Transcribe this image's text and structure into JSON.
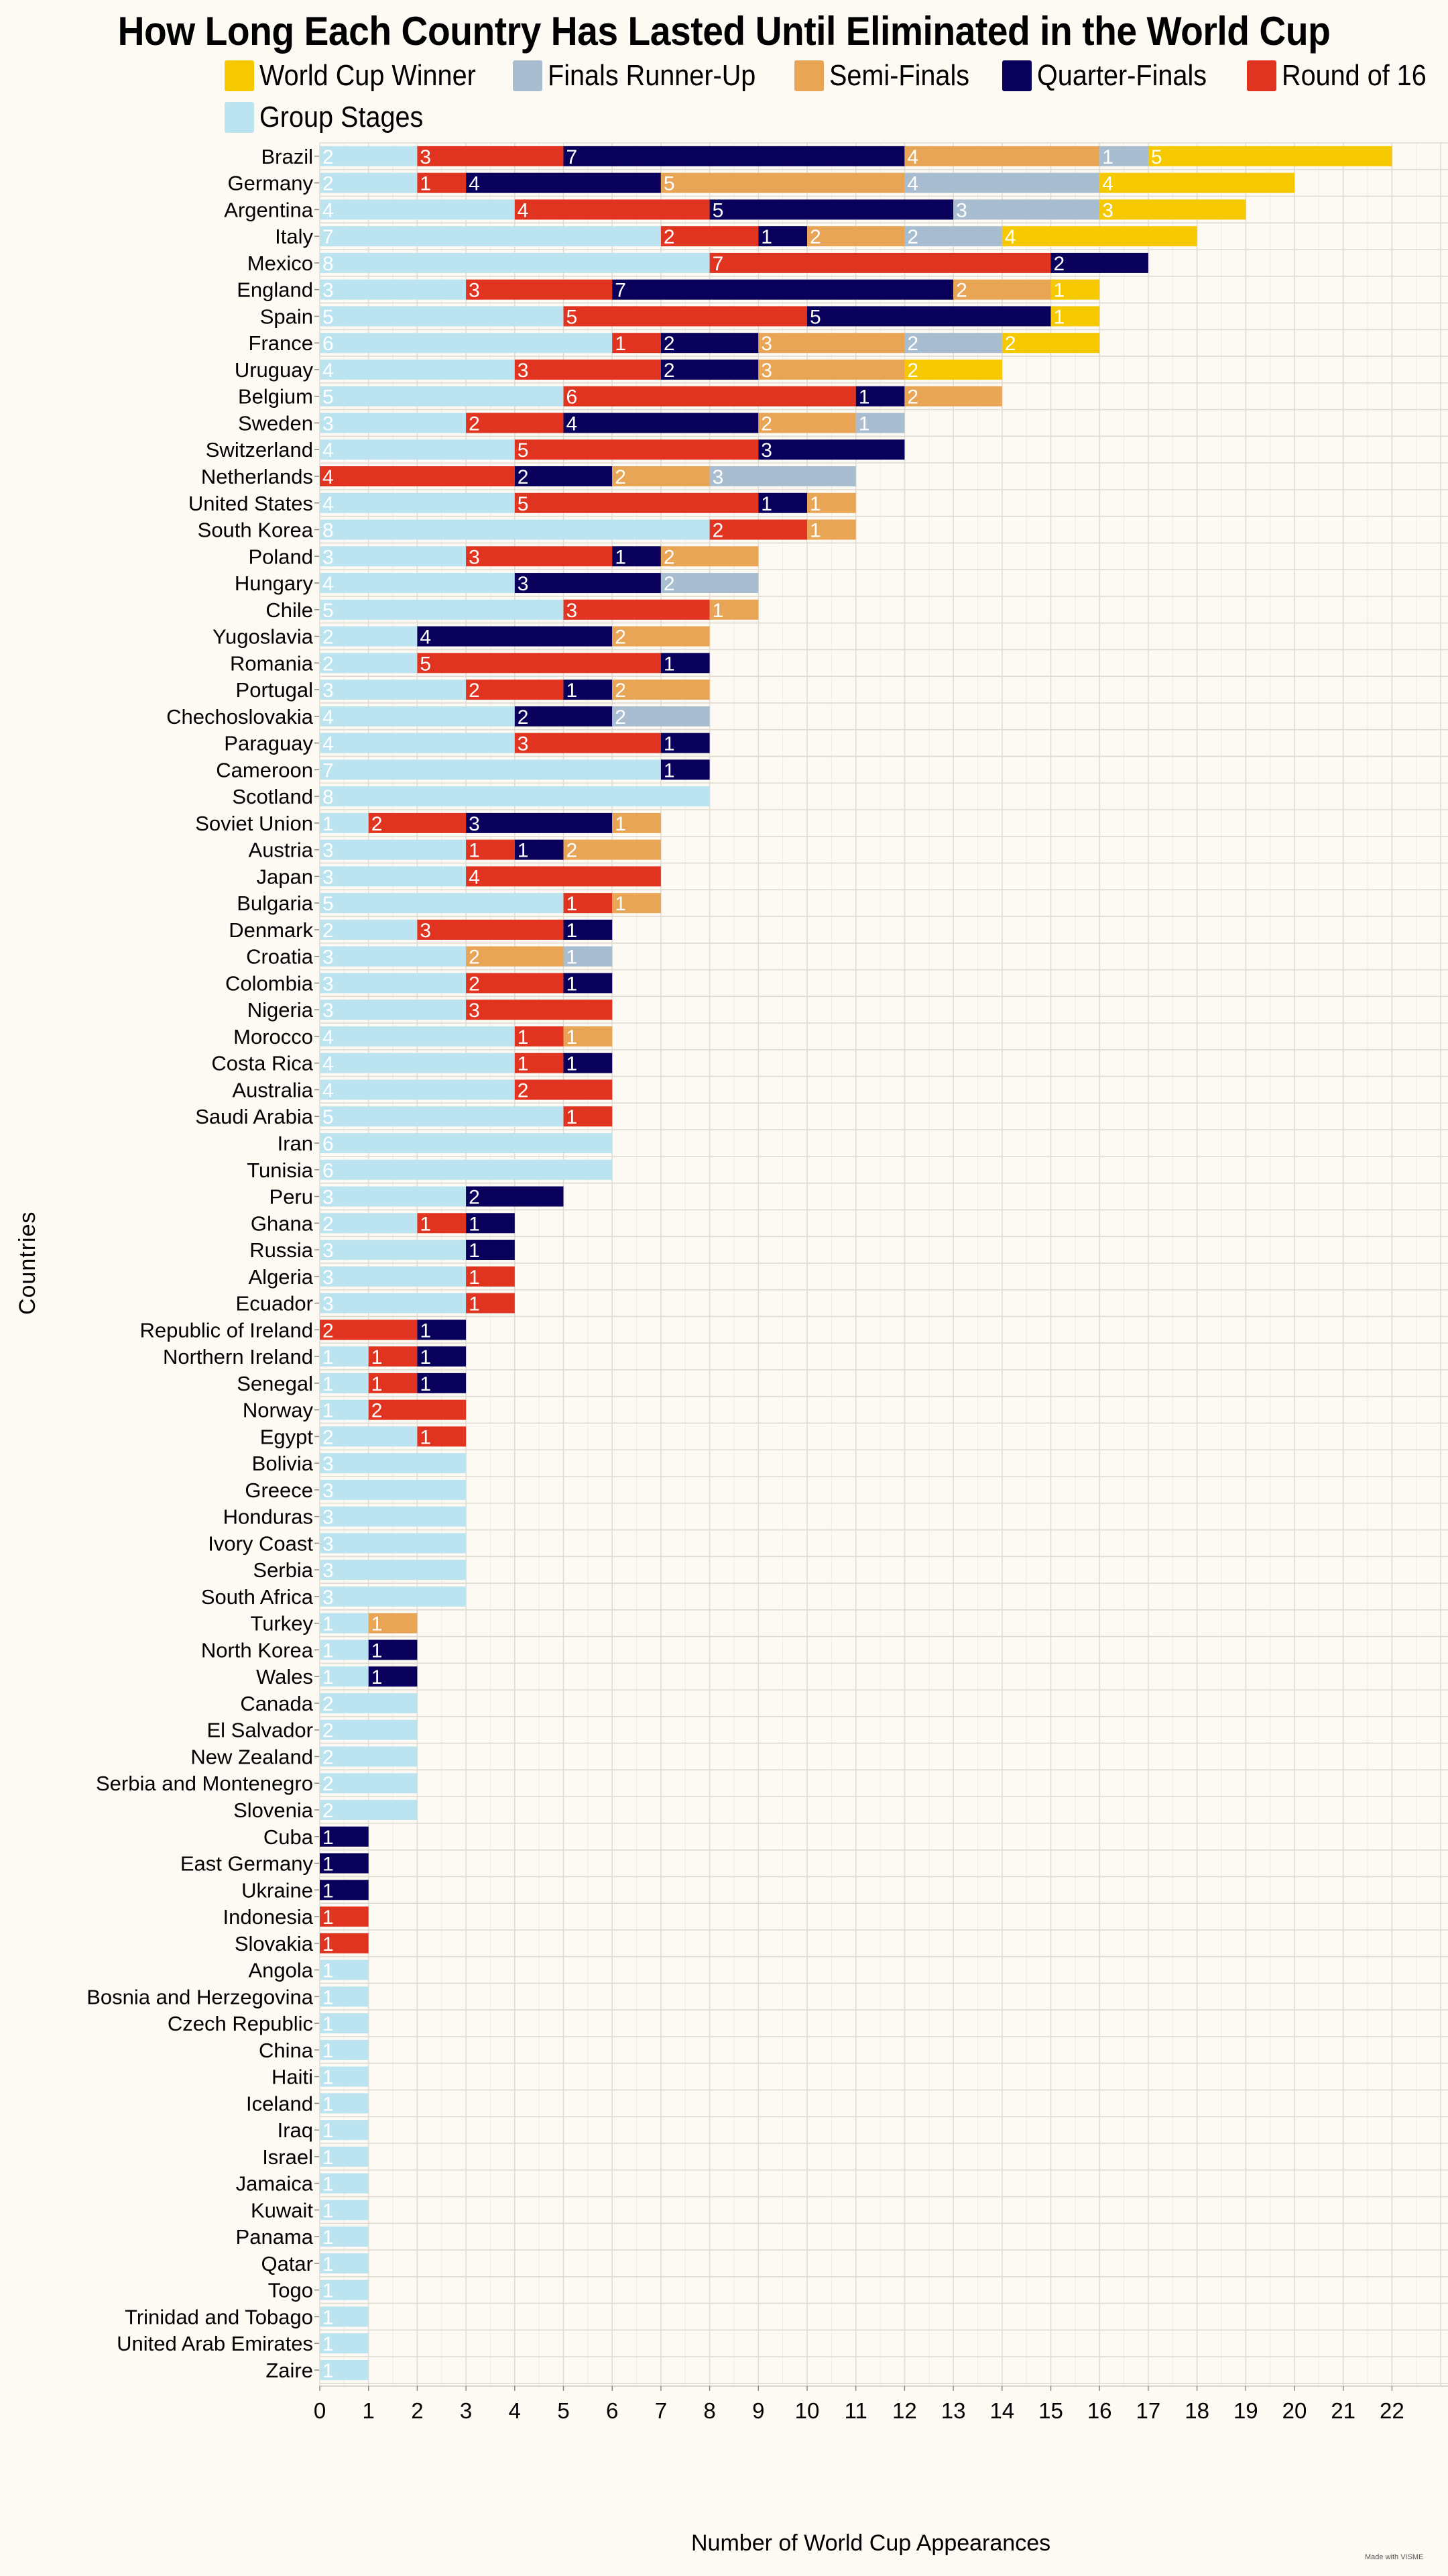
{
  "chart_data": {
    "type": "bar",
    "orientation": "horizontal",
    "stacked": true,
    "title": "How Long Each Country Has Lasted Until Eliminated in the World Cup",
    "xlabel": "Number of World Cup Appearances",
    "ylabel": "Countries",
    "xlim": [
      0,
      23
    ],
    "xticks": [
      0,
      1,
      2,
      3,
      4,
      5,
      6,
      7,
      8,
      9,
      10,
      11,
      12,
      13,
      14,
      15,
      16,
      17,
      18,
      19,
      20,
      21,
      22
    ],
    "grid": true,
    "legend_position": "top",
    "series": [
      {
        "key": "group",
        "name": "Group Stages",
        "color": "#bce4f0",
        "label_color": "#ffffff"
      },
      {
        "key": "r16",
        "name": "Round of 16",
        "color": "#e03421",
        "label_color": "#ffffff"
      },
      {
        "key": "qf",
        "name": "Quarter-Finals",
        "color": "#08005a",
        "label_color": "#ffffff"
      },
      {
        "key": "sf",
        "name": "Semi-Finals",
        "color": "#e9a556",
        "label_color": "#ffffff"
      },
      {
        "key": "ru",
        "name": "Finals Runner-Up",
        "color": "#a8bed0",
        "label_color": "#ffffff"
      },
      {
        "key": "win",
        "name": "World Cup Winner",
        "color": "#f5c800",
        "label_color": "#ffffff"
      }
    ],
    "legend_order": [
      "win",
      "ru",
      "sf",
      "qf",
      "r16",
      "group"
    ],
    "categories": [
      "Brazil",
      "Germany",
      "Argentina",
      "Italy",
      "Mexico",
      "England",
      "Spain",
      "France",
      "Uruguay",
      "Belgium",
      "Sweden",
      "Switzerland",
      "Netherlands",
      "United States",
      "South Korea",
      "Poland",
      "Hungary",
      "Chile",
      "Yugoslavia",
      "Romania",
      "Portugal",
      "Chechoslovakia",
      "Paraguay",
      "Cameroon",
      "Scotland",
      "Soviet Union",
      "Austria",
      "Japan",
      "Bulgaria",
      "Denmark",
      "Croatia",
      "Colombia",
      "Nigeria",
      "Morocco",
      "Costa Rica",
      "Australia",
      "Saudi Arabia",
      "Iran",
      "Tunisia",
      "Peru",
      "Ghana",
      "Russia",
      "Algeria",
      "Ecuador",
      "Republic of Ireland",
      "Northern Ireland",
      "Senegal",
      "Norway",
      "Egypt",
      "Bolivia",
      "Greece",
      "Honduras",
      "Ivory Coast",
      "Serbia",
      "South Africa",
      "Turkey",
      "North Korea",
      "Wales",
      "Canada",
      "El Salvador",
      "New Zealand",
      "Serbia and Montenegro",
      "Slovenia",
      "Cuba",
      "East Germany",
      "Ukraine",
      "Indonesia",
      "Slovakia",
      "Angola",
      "Bosnia and Herzegovina",
      "Czech Republic",
      "China",
      "Haiti",
      "Iceland",
      "Iraq",
      "Israel",
      "Jamaica",
      "Kuwait",
      "Panama",
      "Qatar",
      "Togo",
      "Trinidad and Tobago",
      "United Arab Emirates",
      "Zaire"
    ],
    "values": {
      "group": [
        2,
        2,
        4,
        7,
        8,
        3,
        5,
        6,
        4,
        5,
        3,
        4,
        0,
        4,
        8,
        3,
        4,
        5,
        2,
        2,
        3,
        4,
        4,
        7,
        8,
        1,
        3,
        3,
        5,
        2,
        3,
        3,
        3,
        4,
        4,
        4,
        5,
        6,
        6,
        3,
        2,
        3,
        3,
        3,
        0,
        1,
        1,
        1,
        2,
        3,
        3,
        3,
        3,
        3,
        3,
        1,
        1,
        1,
        2,
        2,
        2,
        2,
        2,
        0,
        0,
        0,
        0,
        0,
        1,
        1,
        1,
        1,
        1,
        1,
        1,
        1,
        1,
        1,
        1,
        1,
        1,
        1,
        1,
        1
      ],
      "r16": [
        3,
        1,
        4,
        2,
        7,
        3,
        5,
        1,
        3,
        6,
        2,
        5,
        4,
        5,
        2,
        3,
        0,
        3,
        0,
        5,
        2,
        0,
        3,
        0,
        0,
        2,
        1,
        4,
        1,
        3,
        0,
        2,
        3,
        1,
        1,
        2,
        1,
        0,
        0,
        0,
        1,
        0,
        1,
        1,
        2,
        1,
        1,
        2,
        1,
        0,
        0,
        0,
        0,
        0,
        0,
        0,
        0,
        0,
        0,
        0,
        0,
        0,
        0,
        0,
        0,
        0,
        1,
        1,
        0,
        0,
        0,
        0,
        0,
        0,
        0,
        0,
        0,
        0,
        0,
        0,
        0,
        0,
        0,
        0
      ],
      "qf": [
        7,
        4,
        5,
        1,
        2,
        7,
        5,
        2,
        2,
        1,
        4,
        3,
        2,
        1,
        0,
        1,
        3,
        0,
        4,
        1,
        1,
        2,
        1,
        1,
        0,
        3,
        1,
        0,
        0,
        1,
        0,
        1,
        0,
        0,
        1,
        0,
        0,
        0,
        0,
        2,
        1,
        1,
        0,
        0,
        1,
        1,
        1,
        0,
        0,
        0,
        0,
        0,
        0,
        0,
        0,
        0,
        1,
        1,
        0,
        0,
        0,
        0,
        0,
        1,
        1,
        1,
        0,
        0,
        0,
        0,
        0,
        0,
        0,
        0,
        0,
        0,
        0,
        0,
        0,
        0,
        0,
        0,
        0,
        0
      ],
      "sf": [
        4,
        5,
        0,
        2,
        0,
        2,
        0,
        3,
        3,
        2,
        2,
        0,
        2,
        1,
        1,
        2,
        0,
        1,
        2,
        0,
        2,
        0,
        0,
        0,
        0,
        1,
        2,
        0,
        1,
        0,
        2,
        0,
        0,
        1,
        0,
        0,
        0,
        0,
        0,
        0,
        0,
        0,
        0,
        0,
        0,
        0,
        0,
        0,
        0,
        0,
        0,
        0,
        0,
        0,
        0,
        1,
        0,
        0,
        0,
        0,
        0,
        0,
        0,
        0,
        0,
        0,
        0,
        0,
        0,
        0,
        0,
        0,
        0,
        0,
        0,
        0,
        0,
        0,
        0,
        0,
        0,
        0,
        0,
        0
      ],
      "ru": [
        1,
        4,
        3,
        2,
        0,
        0,
        0,
        2,
        0,
        0,
        1,
        0,
        3,
        0,
        0,
        0,
        2,
        0,
        0,
        0,
        0,
        2,
        0,
        0,
        0,
        0,
        0,
        0,
        0,
        0,
        1,
        0,
        0,
        0,
        0,
        0,
        0,
        0,
        0,
        0,
        0,
        0,
        0,
        0,
        0,
        0,
        0,
        0,
        0,
        0,
        0,
        0,
        0,
        0,
        0,
        0,
        0,
        0,
        0,
        0,
        0,
        0,
        0,
        0,
        0,
        0,
        0,
        0,
        0,
        0,
        0,
        0,
        0,
        0,
        0,
        0,
        0,
        0,
        0,
        0,
        0,
        0,
        0,
        0
      ],
      "win": [
        5,
        4,
        3,
        4,
        0,
        1,
        1,
        2,
        2,
        0,
        0,
        0,
        0,
        0,
        0,
        0,
        0,
        0,
        0,
        0,
        0,
        0,
        0,
        0,
        0,
        0,
        0,
        0,
        0,
        0,
        0,
        0,
        0,
        0,
        0,
        0,
        0,
        0,
        0,
        0,
        0,
        0,
        0,
        0,
        0,
        0,
        0,
        0,
        0,
        0,
        0,
        0,
        0,
        0,
        0,
        0,
        0,
        0,
        0,
        0,
        0,
        0,
        0,
        0,
        0,
        0,
        0,
        0,
        0,
        0,
        0,
        0,
        0,
        0,
        0,
        0,
        0,
        0,
        0,
        0,
        0,
        0,
        0,
        0
      ]
    }
  },
  "footer": {
    "credit": "Made with VISME"
  }
}
